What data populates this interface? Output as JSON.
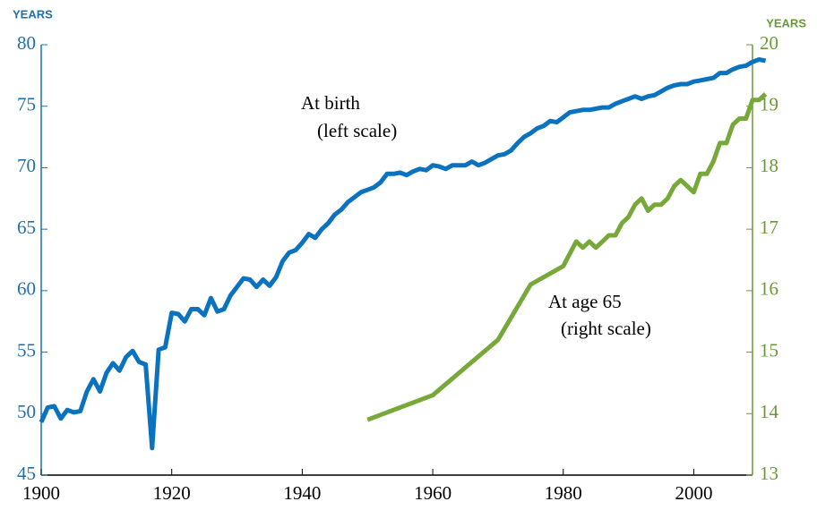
{
  "chart_data": {
    "type": "line",
    "y_unit": "YEARS",
    "y2_unit": "YEARS",
    "annotations": [
      "At birth",
      "(left scale)",
      "At age 65",
      "(right scale)"
    ],
    "xlim": [
      1900,
      2009
    ],
    "xticks": [
      1900,
      1920,
      1940,
      1960,
      1980,
      2000
    ],
    "ylim": [
      45,
      80
    ],
    "yticks": [
      45,
      50,
      55,
      60,
      65,
      70,
      75,
      80
    ],
    "y2lim": [
      13,
      20
    ],
    "y2ticks": [
      13,
      14,
      15,
      16,
      17,
      18,
      19,
      20
    ],
    "y_color": "#1f6fad",
    "y2_color": "#6a9a35",
    "series": [
      {
        "name": "At birth",
        "color": "#0a72bf",
        "axis": "y",
        "x": [
          1900,
          1901,
          1902,
          1903,
          1904,
          1905,
          1906,
          1907,
          1908,
          1909,
          1910,
          1911,
          1912,
          1913,
          1914,
          1915,
          1916,
          1917,
          1918,
          1919,
          1920,
          1921,
          1922,
          1923,
          1924,
          1925,
          1926,
          1927,
          1928,
          1929,
          1930,
          1931,
          1932,
          1933,
          1934,
          1935,
          1936,
          1937,
          1938,
          1939,
          1940,
          1941,
          1942,
          1943,
          1944,
          1945,
          1946,
          1947,
          1948,
          1949,
          1950,
          1951,
          1952,
          1953,
          1954,
          1955,
          1956,
          1957,
          1958,
          1959,
          1960,
          1961,
          1962,
          1963,
          1964,
          1965,
          1966,
          1967,
          1968,
          1969,
          1970,
          1971,
          1972,
          1973,
          1974,
          1975,
          1976,
          1977,
          1978,
          1979,
          1980,
          1981,
          1982,
          1983,
          1984,
          1985,
          1986,
          1987,
          1988,
          1989,
          1990,
          1991,
          1992,
          1993,
          1994,
          1995,
          1996,
          1997,
          1998,
          1999,
          2000,
          2001,
          2002,
          2003,
          2004,
          2005,
          2006,
          2007,
          2008,
          2009,
          2010,
          2011
        ],
        "values": [
          49.3,
          50.5,
          50.6,
          49.6,
          50.3,
          50.1,
          50.2,
          51.8,
          52.8,
          51.8,
          53.3,
          54.1,
          53.5,
          54.6,
          55.1,
          54.2,
          54.0,
          47.2,
          55.2,
          55.4,
          58.2,
          58.1,
          57.5,
          58.5,
          58.5,
          58.0,
          59.4,
          58.3,
          58.5,
          59.6,
          60.3,
          61.0,
          60.9,
          60.3,
          60.9,
          60.4,
          61.1,
          62.4,
          63.1,
          63.3,
          63.9,
          64.6,
          64.3,
          65.0,
          65.5,
          66.2,
          66.6,
          67.2,
          67.6,
          68.0,
          68.2,
          68.4,
          68.8,
          69.5,
          69.5,
          69.6,
          69.4,
          69.7,
          69.9,
          69.8,
          70.2,
          70.1,
          69.9,
          70.2,
          70.2,
          70.2,
          70.5,
          70.2,
          70.4,
          70.7,
          71.0,
          71.1,
          71.4,
          72.0,
          72.5,
          72.8,
          73.2,
          73.4,
          73.8,
          73.7,
          74.1,
          74.5,
          74.6,
          74.7,
          74.7,
          74.8,
          74.9,
          74.9,
          75.2,
          75.4,
          75.6,
          75.8,
          75.6,
          75.8,
          75.9,
          76.2,
          76.5,
          76.7,
          76.8,
          76.8,
          77.0,
          77.1,
          77.2,
          77.3,
          77.7,
          77.7,
          78.0,
          78.2,
          78.3,
          78.6,
          78.8,
          78.7
        ]
      },
      {
        "name": "At age 65",
        "color": "#76a83a",
        "axis": "y2",
        "x": [
          1950,
          1960,
          1970,
          1975,
          1980,
          1981,
          1982,
          1983,
          1984,
          1985,
          1986,
          1987,
          1988,
          1989,
          1990,
          1991,
          1992,
          1993,
          1994,
          1995,
          1996,
          1997,
          1998,
          1999,
          2000,
          2001,
          2002,
          2003,
          2004,
          2005,
          2006,
          2007,
          2008,
          2009,
          2010,
          2011
        ],
        "values": [
          13.9,
          14.3,
          15.2,
          16.1,
          16.4,
          16.6,
          16.8,
          16.7,
          16.8,
          16.7,
          16.8,
          16.9,
          16.9,
          17.1,
          17.2,
          17.4,
          17.5,
          17.3,
          17.4,
          17.4,
          17.5,
          17.7,
          17.8,
          17.7,
          17.6,
          17.9,
          17.9,
          18.1,
          18.4,
          18.4,
          18.7,
          18.8,
          18.8,
          19.1,
          19.1,
          19.2
        ]
      }
    ]
  }
}
